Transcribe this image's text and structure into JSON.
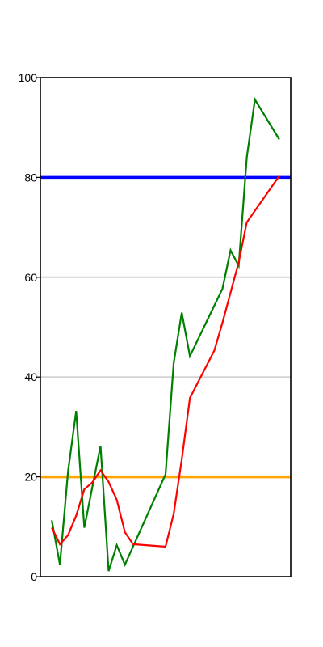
{
  "chart_data": {
    "type": "line",
    "title": "",
    "xlabel": "",
    "ylabel": "",
    "ylim": [
      0,
      100
    ],
    "y_ticks": [
      "0",
      "20",
      "40",
      "60",
      "80",
      "100"
    ],
    "grid": "horizontal lines at 40 and 60",
    "x_ticks_shown": false,
    "series": [
      {
        "color": "#008000",
        "points": [
          [
            1,
            11.3
          ],
          [
            2,
            2.4
          ],
          [
            3,
            21.0
          ],
          [
            4,
            33.2
          ],
          [
            5,
            9.8
          ],
          [
            6,
            18.0
          ],
          [
            7,
            26.2
          ],
          [
            8,
            1.1
          ],
          [
            9,
            6.3
          ],
          [
            10,
            2.4
          ],
          [
            15,
            20.5
          ],
          [
            16,
            42.8
          ],
          [
            17,
            52.9
          ],
          [
            18,
            44.2
          ],
          [
            22,
            57.7
          ],
          [
            23,
            65.4
          ],
          [
            24,
            62.3
          ],
          [
            25,
            84.0
          ],
          [
            26,
            95.6
          ],
          [
            29,
            87.6
          ]
        ]
      },
      {
        "color": "#ff0000",
        "points": [
          [
            1,
            9.8
          ],
          [
            2,
            6.5
          ],
          [
            3,
            8.3
          ],
          [
            4,
            12.2
          ],
          [
            5,
            17.5
          ],
          [
            6,
            18.9
          ],
          [
            7,
            21.3
          ],
          [
            8,
            19.0
          ],
          [
            9,
            15.4
          ],
          [
            10,
            8.9
          ],
          [
            11,
            6.5
          ],
          [
            15,
            6.0
          ],
          [
            16,
            12.6
          ],
          [
            17,
            23.5
          ],
          [
            18,
            35.8
          ],
          [
            21,
            45.3
          ],
          [
            22,
            50.9
          ],
          [
            23,
            56.9
          ],
          [
            24,
            63.0
          ],
          [
            25,
            71.0
          ],
          [
            29,
            80.3
          ]
        ]
      }
    ],
    "reference_lines": [
      {
        "y": 80,
        "color": "#0000ff"
      },
      {
        "y": 20,
        "color": "#ffa500"
      }
    ]
  }
}
